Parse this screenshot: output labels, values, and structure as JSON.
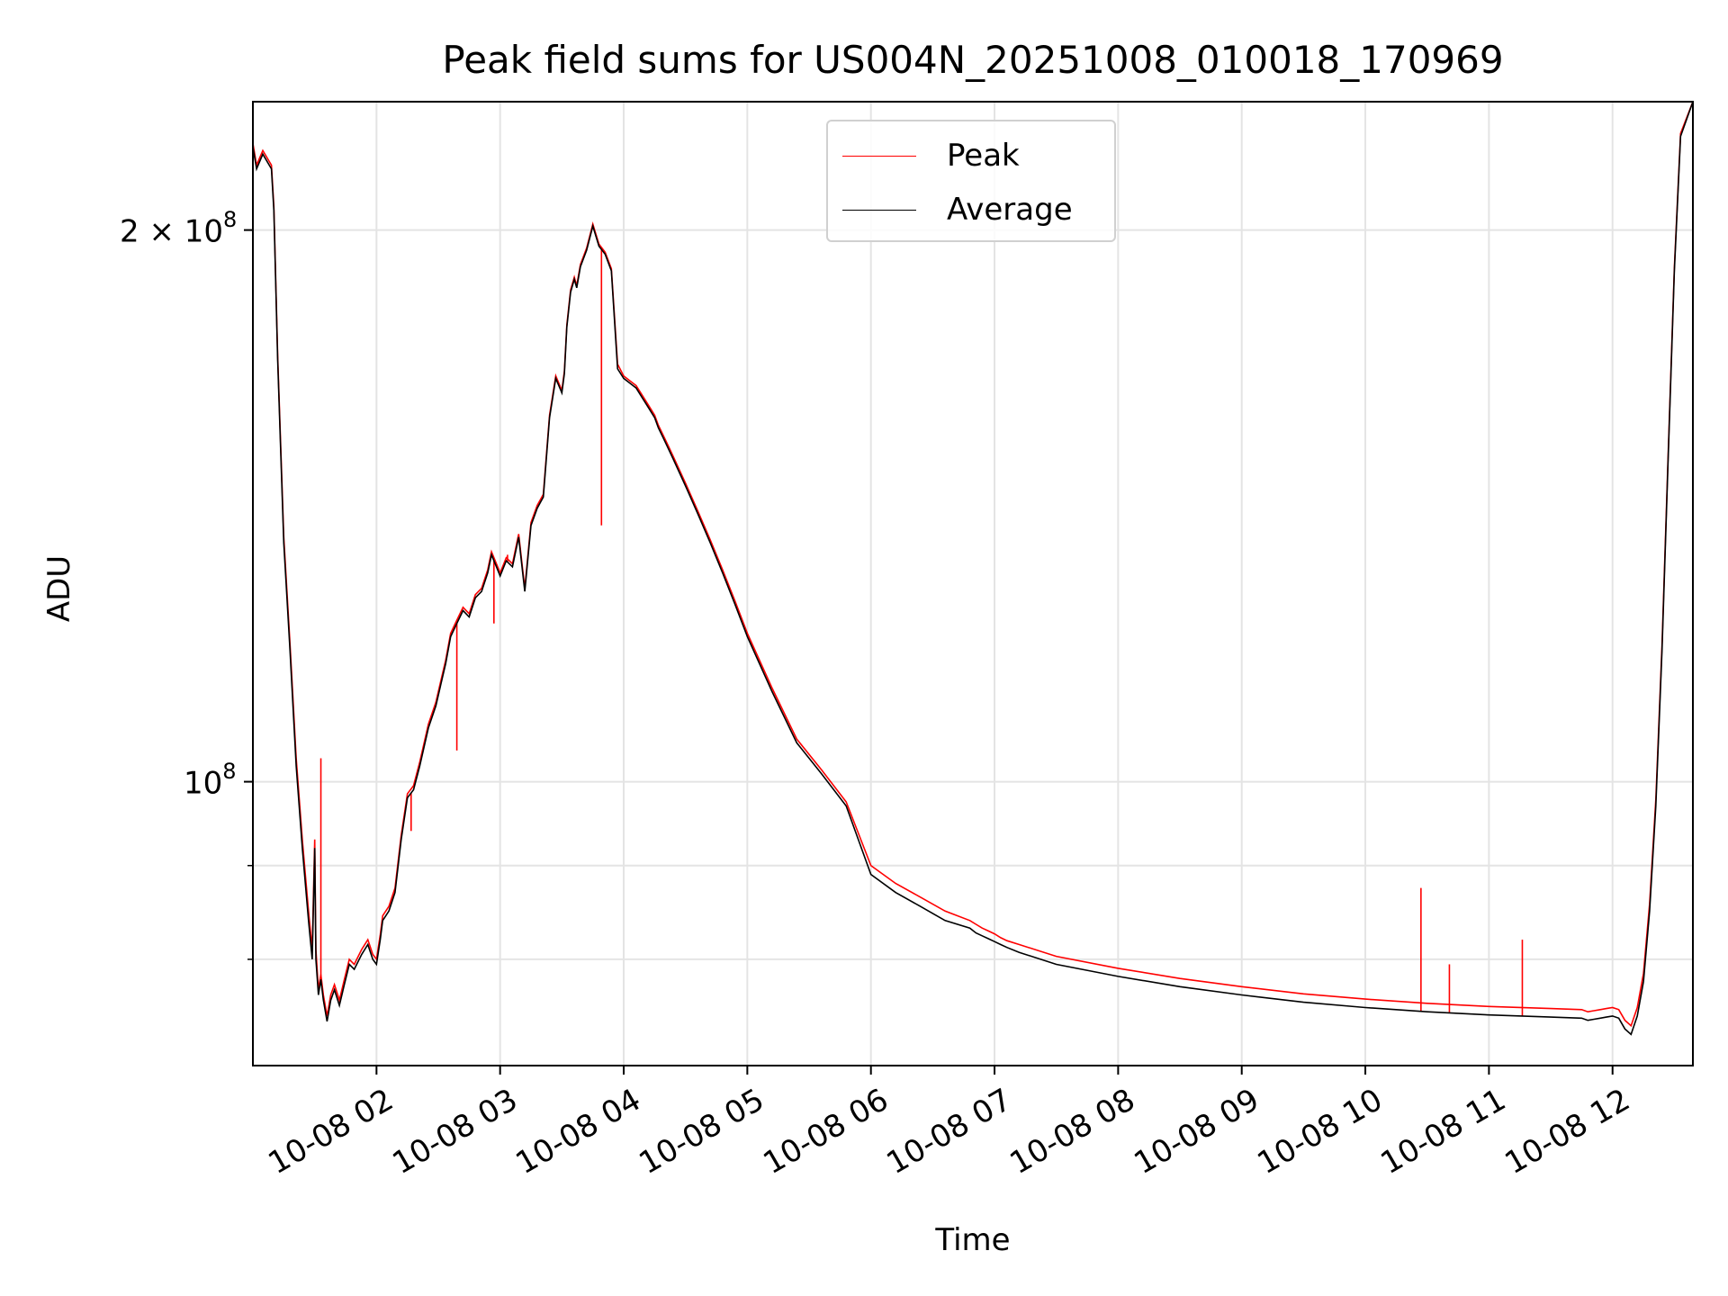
{
  "chart_data": {
    "type": "line",
    "title": "Peak field sums for US004N_20251008_010018_170969",
    "xlabel": "Time",
    "ylabel": "ADU",
    "yscale": "log",
    "grid": true,
    "legend_position": "top-center",
    "xlim": [
      1.0,
      12.65
    ],
    "ylim": [
      70000000,
      235000000
    ],
    "x_ticks": [
      {
        "value": 2,
        "label": "10-08 02"
      },
      {
        "value": 3,
        "label": "10-08 03"
      },
      {
        "value": 4,
        "label": "10-08 04"
      },
      {
        "value": 5,
        "label": "10-08 05"
      },
      {
        "value": 6,
        "label": "10-08 06"
      },
      {
        "value": 7,
        "label": "10-08 07"
      },
      {
        "value": 8,
        "label": "10-08 08"
      },
      {
        "value": 9,
        "label": "10-08 09"
      },
      {
        "value": 10,
        "label": "10-08 10"
      },
      {
        "value": 11,
        "label": "10-08 11"
      },
      {
        "value": 12,
        "label": "10-08 12"
      }
    ],
    "y_ticks": [
      {
        "value": 100000000,
        "base": "10",
        "exp": "8"
      },
      {
        "value": 200000000,
        "base": "2 × 10",
        "exp": "8"
      }
    ],
    "y_minor_ticks": [
      80000000,
      90000000
    ],
    "series": [
      {
        "name": "Average",
        "color": "#000000",
        "x": [
          1.0,
          1.03,
          1.08,
          1.15,
          1.17,
          1.2,
          1.25,
          1.3,
          1.35,
          1.4,
          1.45,
          1.48,
          1.5,
          1.51,
          1.53,
          1.55,
          1.57,
          1.6,
          1.63,
          1.66,
          1.7,
          1.74,
          1.78,
          1.82,
          1.88,
          1.93,
          1.97,
          2.0,
          2.03,
          2.05,
          2.1,
          2.15,
          2.2,
          2.25,
          2.3,
          2.35,
          2.42,
          2.48,
          2.52,
          2.56,
          2.6,
          2.65,
          2.7,
          2.75,
          2.8,
          2.85,
          2.9,
          2.93,
          2.97,
          3.0,
          3.05,
          3.1,
          3.15,
          3.2,
          3.25,
          3.3,
          3.35,
          3.4,
          3.45,
          3.5,
          3.52,
          3.54,
          3.57,
          3.6,
          3.62,
          3.65,
          3.7,
          3.75,
          3.8,
          3.85,
          3.9,
          3.95,
          4.0,
          4.05,
          4.1,
          4.15,
          4.2,
          4.25,
          4.28,
          4.32,
          4.36,
          4.4,
          4.5,
          4.6,
          4.7,
          4.8,
          4.9,
          5.0,
          5.2,
          5.4,
          5.6,
          5.8,
          6.0,
          6.2,
          6.4,
          6.6,
          6.8,
          6.85,
          6.9,
          6.95,
          7.0,
          7.05,
          7.1,
          7.2,
          7.5,
          8.0,
          8.5,
          9.0,
          9.5,
          10.0,
          10.5,
          11.0,
          11.5,
          11.75,
          11.8,
          11.85,
          11.9,
          11.95,
          12.0,
          12.05,
          12.1,
          12.15,
          12.2,
          12.25,
          12.3,
          12.35,
          12.4,
          12.45,
          12.5,
          12.55,
          12.65
        ],
        "y": [
          222000000,
          216000000,
          220000000,
          216000000,
          205000000,
          170000000,
          135000000,
          118000000,
          102000000,
          92000000,
          84000000,
          80000000,
          92000000,
          80000000,
          76500000,
          78000000,
          76000000,
          74000000,
          76000000,
          77000000,
          75500000,
          77500000,
          79500000,
          79000000,
          80500000,
          81500000,
          80000000,
          79500000,
          82000000,
          84000000,
          85000000,
          87000000,
          93000000,
          98000000,
          99000000,
          102000000,
          107000000,
          110000000,
          113000000,
          116000000,
          120000000,
          122000000,
          124000000,
          123000000,
          126000000,
          127000000,
          130000000,
          133000000,
          131000000,
          129500000,
          132000000,
          131000000,
          136000000,
          127000000,
          138000000,
          141000000,
          143000000,
          158000000,
          166000000,
          163000000,
          167000000,
          177000000,
          185000000,
          188000000,
          186000000,
          191000000,
          195000000,
          201000000,
          196000000,
          194000000,
          190000000,
          168000000,
          166000000,
          165000000,
          164000000,
          162000000,
          160000000,
          158000000,
          156000000,
          154000000,
          152000000,
          150000000,
          145000000,
          140000000,
          135000000,
          130000000,
          125000000,
          120000000,
          112000000,
          105000000,
          101000000,
          97000000,
          89000000,
          87000000,
          85500000,
          84000000,
          83200000,
          82700000,
          82400000,
          82100000,
          81800000,
          81500000,
          81200000,
          80700000,
          79500000,
          78300000,
          77300000,
          76500000,
          75800000,
          75300000,
          74900000,
          74600000,
          74400000,
          74300000,
          74100000,
          74200000,
          74300000,
          74400000,
          74500000,
          74300000,
          73300000,
          72800000,
          74500000,
          77800000,
          85000000,
          97000000,
          118000000,
          150000000,
          190000000,
          225000000,
          235000000
        ],
        "x_note": "hours after 00:00 on 10-08"
      },
      {
        "name": "Peak",
        "color": "#ff0000",
        "x": [
          1.0,
          1.03,
          1.08,
          1.15,
          1.17,
          1.2,
          1.25,
          1.3,
          1.35,
          1.4,
          1.45,
          1.48,
          1.5,
          1.51,
          1.53,
          1.55,
          1.57,
          1.6,
          1.63,
          1.66,
          1.7,
          1.74,
          1.78,
          1.82,
          1.88,
          1.93,
          1.97,
          2.0,
          2.03,
          2.05,
          2.1,
          2.15,
          2.2,
          2.25,
          2.3,
          2.35,
          2.42,
          2.48,
          2.52,
          2.56,
          2.6,
          2.65,
          2.7,
          2.75,
          2.8,
          2.85,
          2.9,
          2.93,
          2.97,
          3.0,
          3.05,
          3.1,
          3.15,
          3.2,
          3.25,
          3.3,
          3.35,
          3.4,
          3.45,
          3.5,
          3.52,
          3.54,
          3.57,
          3.6,
          3.62,
          3.65,
          3.7,
          3.75,
          3.8,
          3.85,
          3.9,
          3.95,
          4.0,
          4.05,
          4.1,
          4.15,
          4.2,
          4.25,
          4.28,
          4.32,
          4.36,
          4.4,
          4.5,
          4.6,
          4.7,
          4.8,
          4.9,
          5.0,
          5.2,
          5.4,
          5.6,
          5.8,
          6.0,
          6.2,
          6.4,
          6.6,
          6.8,
          6.85,
          6.9,
          6.95,
          7.0,
          7.05,
          7.1,
          7.2,
          7.5,
          8.0,
          8.5,
          9.0,
          9.5,
          10.0,
          10.5,
          11.0,
          11.5,
          11.75,
          11.8,
          11.85,
          11.9,
          11.95,
          12.0,
          12.05,
          12.1,
          12.15,
          12.2,
          12.25,
          12.3,
          12.35,
          12.4,
          12.45,
          12.5,
          12.55,
          12.65
        ],
        "y": [
          223000000,
          217000000,
          221000000,
          217000000,
          206000000,
          171000000,
          136000000,
          119000000,
          103000000,
          93000000,
          85000000,
          81000000,
          93000000,
          81000000,
          77000000,
          78500000,
          76500000,
          74500000,
          76500000,
          77500000,
          76000000,
          78000000,
          80000000,
          79500000,
          81000000,
          82000000,
          80500000,
          80000000,
          82500000,
          84500000,
          85500000,
          87500000,
          93500000,
          98500000,
          99500000,
          102500000,
          107500000,
          110500000,
          113500000,
          116500000,
          120500000,
          122500000,
          124500000,
          123500000,
          126500000,
          127500000,
          130500000,
          133500000,
          131500000,
          130000000,
          132500000,
          131500000,
          136500000,
          127500000,
          138500000,
          141500000,
          143500000,
          158500000,
          166500000,
          163500000,
          167500000,
          177500000,
          185500000,
          188500000,
          186500000,
          191500000,
          195500000,
          201500000,
          196500000,
          194500000,
          190500000,
          169000000,
          166500000,
          165500000,
          164500000,
          162500000,
          160500000,
          158500000,
          156500000,
          154500000,
          152500000,
          150500000,
          145500000,
          140500000,
          135500000,
          130500000,
          125500000,
          120500000,
          112500000,
          105500000,
          101500000,
          97500000,
          90000000,
          88000000,
          86500000,
          85000000,
          84000000,
          83600000,
          83200000,
          82900000,
          82600000,
          82200000,
          81900000,
          81500000,
          80300000,
          79100000,
          78100000,
          77300000,
          76600000,
          76100000,
          75700000,
          75400000,
          75200000,
          75100000,
          74900000,
          75000000,
          75100000,
          75200000,
          75300000,
          75100000,
          74100000,
          73600000,
          75300000,
          78600000,
          85800000,
          97800000,
          118800000,
          150800000,
          190800000,
          225800000,
          235000000
        ],
        "spikes": [
          {
            "x": 1.55,
            "y": 103000000
          },
          {
            "x": 2.28,
            "y": 94000000
          },
          {
            "x": 2.65,
            "y": 104000000
          },
          {
            "x": 2.95,
            "y": 122000000
          },
          {
            "x": 3.06,
            "y": 133000000
          },
          {
            "x": 3.82,
            "y": 138000000
          },
          {
            "x": 10.45,
            "y": 87500000
          },
          {
            "x": 10.68,
            "y": 79500000
          },
          {
            "x": 11.27,
            "y": 82000000
          }
        ]
      }
    ]
  }
}
